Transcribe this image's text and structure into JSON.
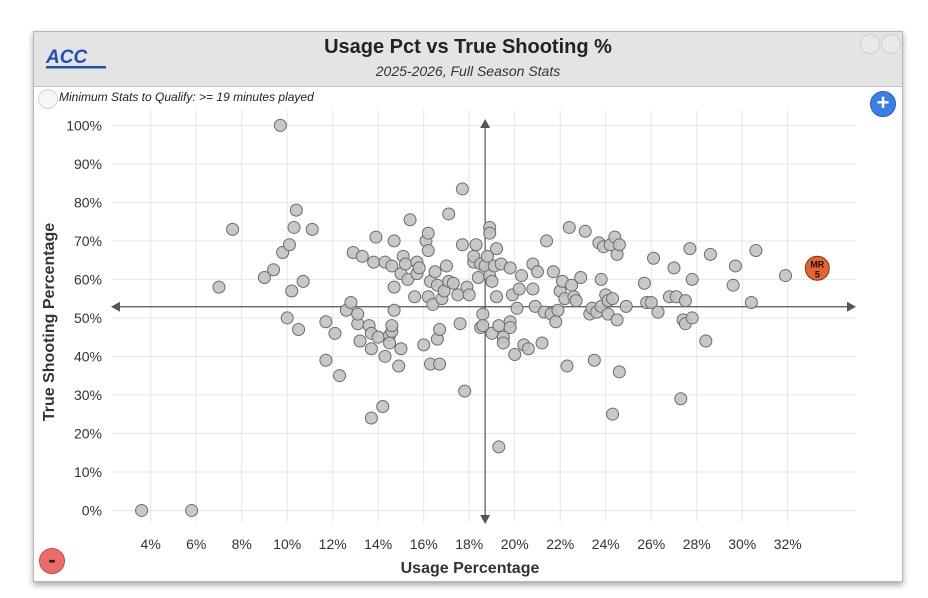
{
  "header": {
    "logo_text": "ACC",
    "title": "Usage Pct vs True Shooting %",
    "subtitle": "2025-2026, Full Season Stats"
  },
  "qualify_note": "Minimum Stats to Qualify: >= 19 minutes played",
  "controls": {
    "zoom_in": "+",
    "zoom_out": "-"
  },
  "colors": {
    "point": "#c2c2c2",
    "point_stroke": "#6b6b6b",
    "highlight": "#e8622c",
    "header_bg": "#e4e4e4",
    "logo": "#1f4fb4"
  },
  "chart_data": {
    "type": "scatter",
    "title": "Usage Pct vs True Shooting %",
    "subtitle": "2025-2026, Full Season Stats",
    "xlabel": "Usage Percentage",
    "ylabel": "True Shooting Percentage",
    "xlim": [
      2.3,
      35.0
    ],
    "ylim": [
      -3.0,
      104.0
    ],
    "x_ticks": [
      4,
      6,
      8,
      10,
      12,
      14,
      16,
      18,
      20,
      22,
      24,
      26,
      28,
      30,
      32
    ],
    "y_ticks": [
      0,
      10,
      20,
      30,
      40,
      50,
      60,
      70,
      80,
      90,
      100
    ],
    "tick_suffix": "%",
    "grid": true,
    "crosshair": {
      "x": 18.7,
      "y": 52.9
    },
    "highlight": {
      "label": "MR",
      "sublabel": "5",
      "x": 33.3,
      "y": 62.9
    },
    "points": [
      [
        3.6,
        0
      ],
      [
        5.8,
        0
      ],
      [
        7.0,
        58
      ],
      [
        7.6,
        73
      ],
      [
        9.0,
        60.5
      ],
      [
        9.4,
        62.5
      ],
      [
        9.7,
        100
      ],
      [
        9.8,
        67
      ],
      [
        10.1,
        69
      ],
      [
        10.2,
        57
      ],
      [
        10.3,
        73.5
      ],
      [
        10.4,
        78
      ],
      [
        10.5,
        47
      ],
      [
        10.7,
        59.5
      ],
      [
        11.1,
        73
      ],
      [
        10.0,
        50
      ],
      [
        11.7,
        49
      ],
      [
        11.7,
        39
      ],
      [
        12.1,
        46
      ],
      [
        12.3,
        35
      ],
      [
        12.6,
        52
      ],
      [
        12.8,
        54
      ],
      [
        12.9,
        67
      ],
      [
        13.1,
        48.5
      ],
      [
        13.1,
        51
      ],
      [
        13.2,
        44
      ],
      [
        13.3,
        66
      ],
      [
        13.6,
        48
      ],
      [
        13.7,
        42
      ],
      [
        13.7,
        46
      ],
      [
        13.7,
        24
      ],
      [
        13.8,
        64.5
      ],
      [
        13.9,
        71
      ],
      [
        14.0,
        45
      ],
      [
        14.2,
        27
      ],
      [
        14.3,
        40
      ],
      [
        14.3,
        64.5
      ],
      [
        14.5,
        45.5
      ],
      [
        14.5,
        43.5
      ],
      [
        14.6,
        46.5
      ],
      [
        14.6,
        48
      ],
      [
        14.6,
        63.5
      ],
      [
        14.7,
        58
      ],
      [
        14.7,
        70
      ],
      [
        14.7,
        52
      ],
      [
        14.9,
        37.5
      ],
      [
        15.0,
        42
      ],
      [
        15.0,
        61.5
      ],
      [
        15.1,
        66
      ],
      [
        15.2,
        64
      ],
      [
        15.3,
        60
      ],
      [
        15.4,
        75.5
      ],
      [
        15.6,
        55.5
      ],
      [
        15.7,
        61.5
      ],
      [
        15.7,
        64.5
      ],
      [
        15.8,
        63
      ],
      [
        16.0,
        43
      ],
      [
        16.1,
        70
      ],
      [
        16.2,
        72
      ],
      [
        16.2,
        67.5
      ],
      [
        16.2,
        55.5
      ],
      [
        16.3,
        38
      ],
      [
        16.3,
        59.5
      ],
      [
        16.4,
        53.5
      ],
      [
        16.5,
        62
      ],
      [
        16.6,
        44.5
      ],
      [
        16.6,
        58.5
      ],
      [
        16.7,
        47
      ],
      [
        16.7,
        38
      ],
      [
        16.8,
        55
      ],
      [
        16.9,
        57
      ],
      [
        17.0,
        63.5
      ],
      [
        17.1,
        77
      ],
      [
        17.1,
        59.5
      ],
      [
        17.3,
        59
      ],
      [
        17.5,
        56
      ],
      [
        17.6,
        48.5
      ],
      [
        17.7,
        69
      ],
      [
        17.7,
        83.5
      ],
      [
        17.8,
        31
      ],
      [
        17.9,
        58
      ],
      [
        18.0,
        56
      ],
      [
        18.2,
        64.5
      ],
      [
        18.2,
        66
      ],
      [
        18.3,
        69
      ],
      [
        18.4,
        60.5
      ],
      [
        18.5,
        64
      ],
      [
        18.5,
        47.5
      ],
      [
        18.6,
        51
      ],
      [
        18.6,
        48
      ],
      [
        18.7,
        63.5
      ],
      [
        18.8,
        66
      ],
      [
        18.9,
        61
      ],
      [
        18.9,
        73.5
      ],
      [
        18.9,
        72
      ],
      [
        19.0,
        46
      ],
      [
        19.0,
        59.5
      ],
      [
        19.1,
        63.5
      ],
      [
        19.2,
        55.5
      ],
      [
        19.2,
        68
      ],
      [
        19.3,
        48
      ],
      [
        19.3,
        16.5
      ],
      [
        19.4,
        64
      ],
      [
        19.5,
        45
      ],
      [
        19.5,
        43.5
      ],
      [
        19.8,
        49
      ],
      [
        19.8,
        47.5
      ],
      [
        19.8,
        63
      ],
      [
        19.9,
        56
      ],
      [
        20.0,
        40.5
      ],
      [
        20.1,
        52.5
      ],
      [
        20.2,
        57.5
      ],
      [
        20.3,
        61
      ],
      [
        20.4,
        43
      ],
      [
        20.6,
        42
      ],
      [
        20.8,
        64
      ],
      [
        20.8,
        57.5
      ],
      [
        20.9,
        53
      ],
      [
        21.0,
        62
      ],
      [
        21.2,
        43.5
      ],
      [
        21.3,
        51.5
      ],
      [
        21.4,
        70
      ],
      [
        21.6,
        51
      ],
      [
        21.7,
        62
      ],
      [
        21.8,
        49
      ],
      [
        21.9,
        52
      ],
      [
        22.0,
        57
      ],
      [
        22.1,
        59.5
      ],
      [
        22.2,
        55
      ],
      [
        22.3,
        37.5
      ],
      [
        22.4,
        73.5
      ],
      [
        22.5,
        58.5
      ],
      [
        22.6,
        55.5
      ],
      [
        22.7,
        54.5
      ],
      [
        22.9,
        60.5
      ],
      [
        23.1,
        72.5
      ],
      [
        23.3,
        51
      ],
      [
        23.4,
        52.5
      ],
      [
        23.5,
        39
      ],
      [
        23.6,
        51.5
      ],
      [
        23.7,
        69.5
      ],
      [
        23.8,
        60
      ],
      [
        23.8,
        53
      ],
      [
        23.9,
        68.5
      ],
      [
        24.0,
        56
      ],
      [
        24.1,
        51
      ],
      [
        24.1,
        54.5
      ],
      [
        24.2,
        69
      ],
      [
        24.3,
        55
      ],
      [
        24.3,
        25
      ],
      [
        24.4,
        71
      ],
      [
        24.5,
        49.5
      ],
      [
        24.5,
        66.5
      ],
      [
        24.6,
        36
      ],
      [
        24.6,
        69
      ],
      [
        24.9,
        53
      ],
      [
        25.7,
        59
      ],
      [
        25.8,
        54
      ],
      [
        26.0,
        54
      ],
      [
        26.1,
        65.5
      ],
      [
        26.3,
        51.5
      ],
      [
        26.8,
        55.5
      ],
      [
        27.0,
        63
      ],
      [
        27.1,
        55.5
      ],
      [
        27.3,
        29
      ],
      [
        27.4,
        49.5
      ],
      [
        27.5,
        48.5
      ],
      [
        27.5,
        54.5
      ],
      [
        27.7,
        68
      ],
      [
        27.8,
        60
      ],
      [
        27.8,
        50
      ],
      [
        28.4,
        44
      ],
      [
        28.6,
        66.5
      ],
      [
        29.6,
        58.5
      ],
      [
        29.7,
        63.5
      ],
      [
        30.4,
        54
      ],
      [
        30.6,
        67.5
      ],
      [
        31.9,
        61
      ]
    ]
  }
}
